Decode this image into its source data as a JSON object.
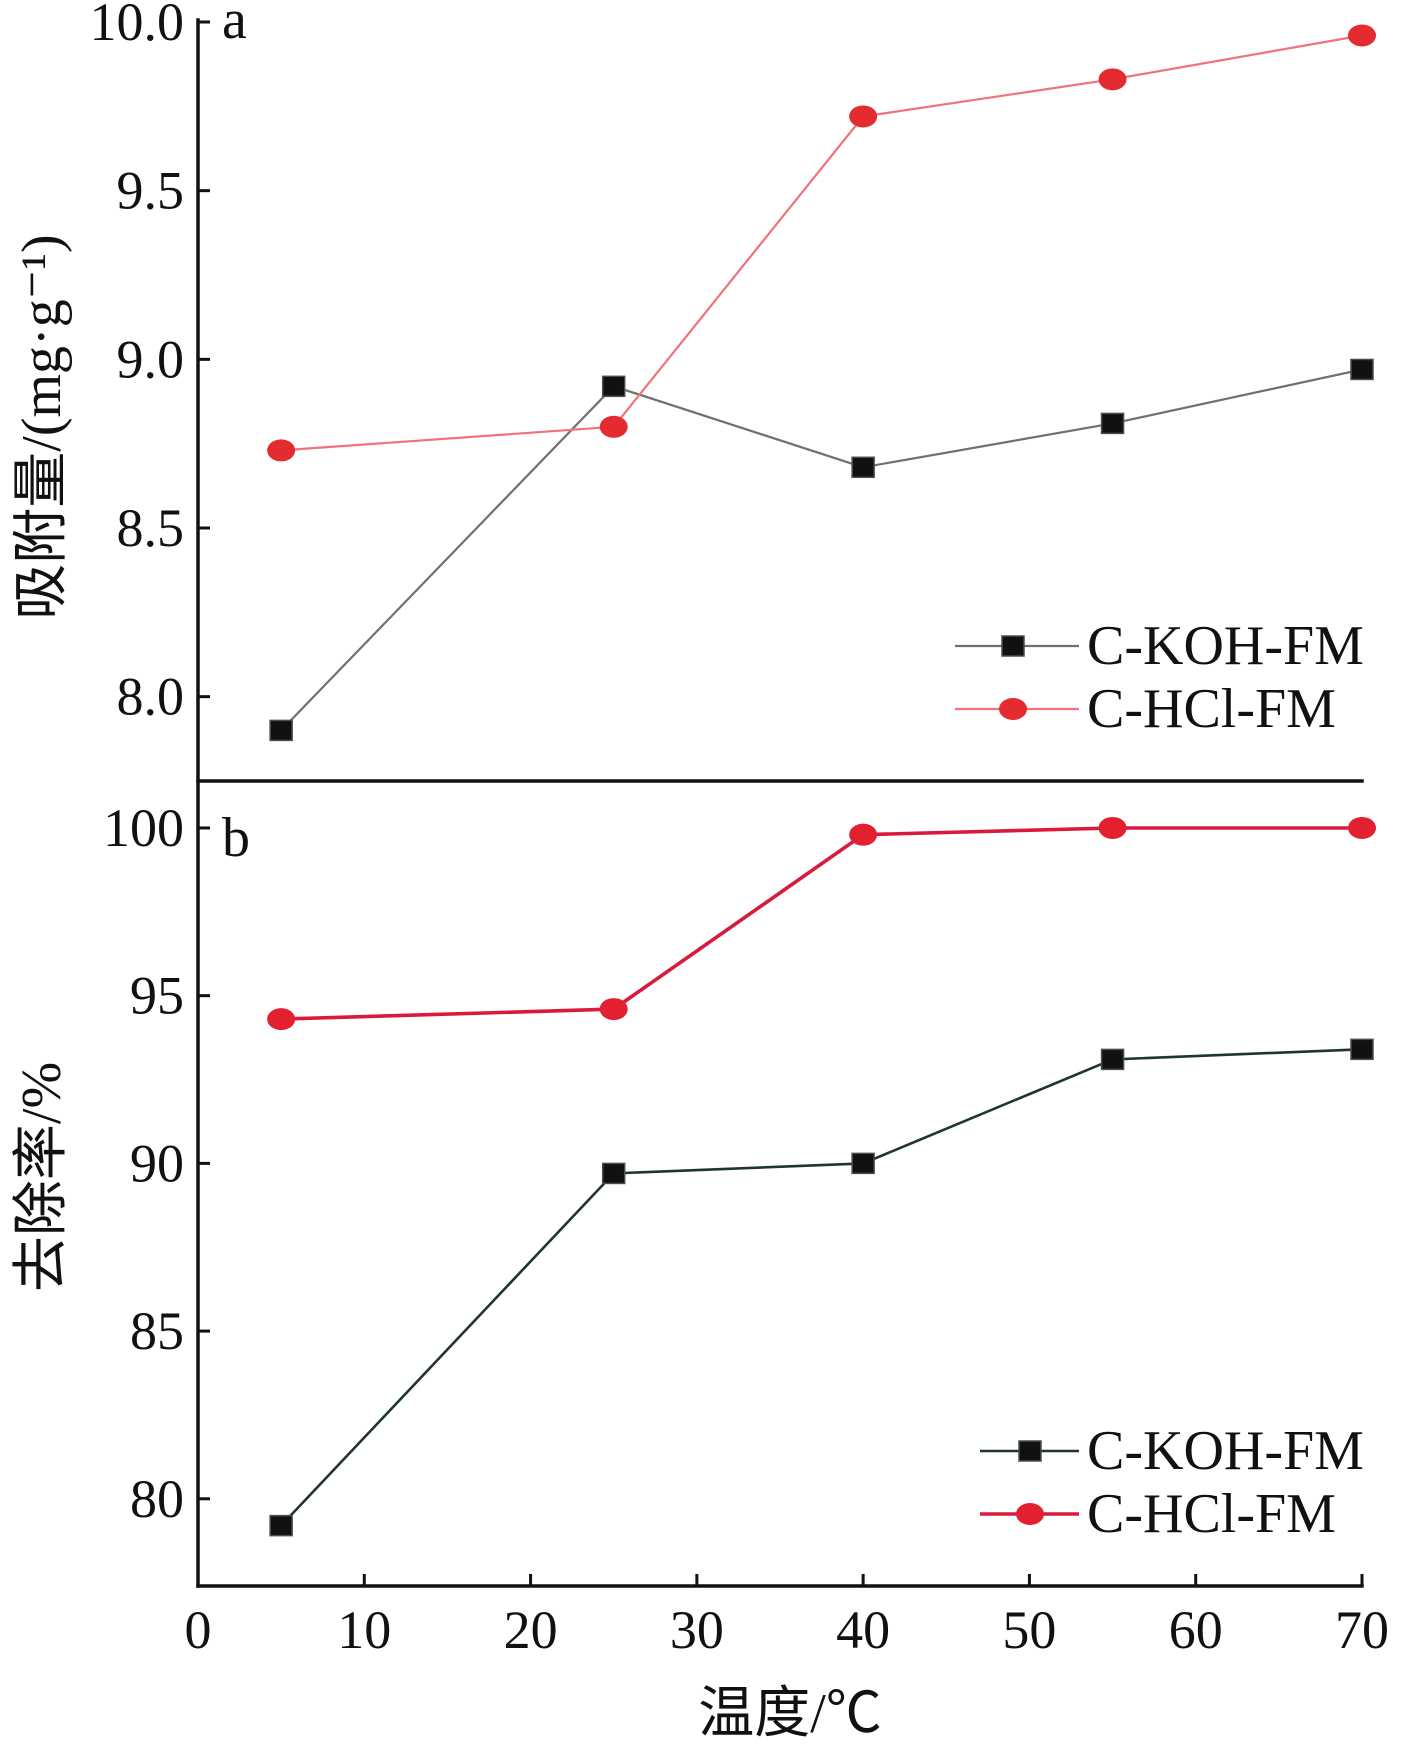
{
  "chart_data": [
    {
      "type": "line",
      "panel_label": "a",
      "ylabel": "吸附量/(mg·g⁻¹)",
      "x": [
        5,
        25,
        40,
        55,
        70
      ],
      "xlim": [
        0,
        70
      ],
      "ylim": [
        7.75,
        10.0
      ],
      "yticks": [
        "8.0",
        "8.5",
        "9.0",
        "9.5",
        "10.0"
      ],
      "series": [
        {
          "name": "C-KOH-FM",
          "values": [
            7.9,
            8.92,
            8.68,
            8.81,
            8.97
          ],
          "marker": "square",
          "line_color": "#707070",
          "marker_color": "#111111"
        },
        {
          "name": "C-HCl-FM",
          "values": [
            8.73,
            8.8,
            9.72,
            9.83,
            9.96
          ],
          "marker": "circle",
          "line_color": "#f0727a",
          "marker_color": "#e42b2f"
        }
      ],
      "legend": "bottom-right",
      "grid": false
    },
    {
      "type": "line",
      "panel_label": "b",
      "ylabel": "去除率/%",
      "xlabel": "温度/℃",
      "x": [
        5,
        25,
        40,
        55,
        70
      ],
      "xlim": [
        0,
        70
      ],
      "ylim": [
        77.4,
        101.4
      ],
      "xticks": [
        "0",
        "10",
        "20",
        "30",
        "40",
        "50",
        "60",
        "70"
      ],
      "yticks": [
        "80",
        "85",
        "90",
        "95",
        "100"
      ],
      "series": [
        {
          "name": "C-KOH-FM",
          "values": [
            79.2,
            89.7,
            90.0,
            93.1,
            93.4
          ],
          "marker": "square",
          "line_color": "#1f3434",
          "marker_color": "#111111"
        },
        {
          "name": "C-HCl-FM",
          "values": [
            94.3,
            94.6,
            99.8,
            100.0,
            100.0
          ],
          "marker": "circle",
          "line_color": "#d81b3c",
          "marker_color": "#e2202f"
        }
      ],
      "legend": "bottom-right",
      "grid": false
    }
  ]
}
